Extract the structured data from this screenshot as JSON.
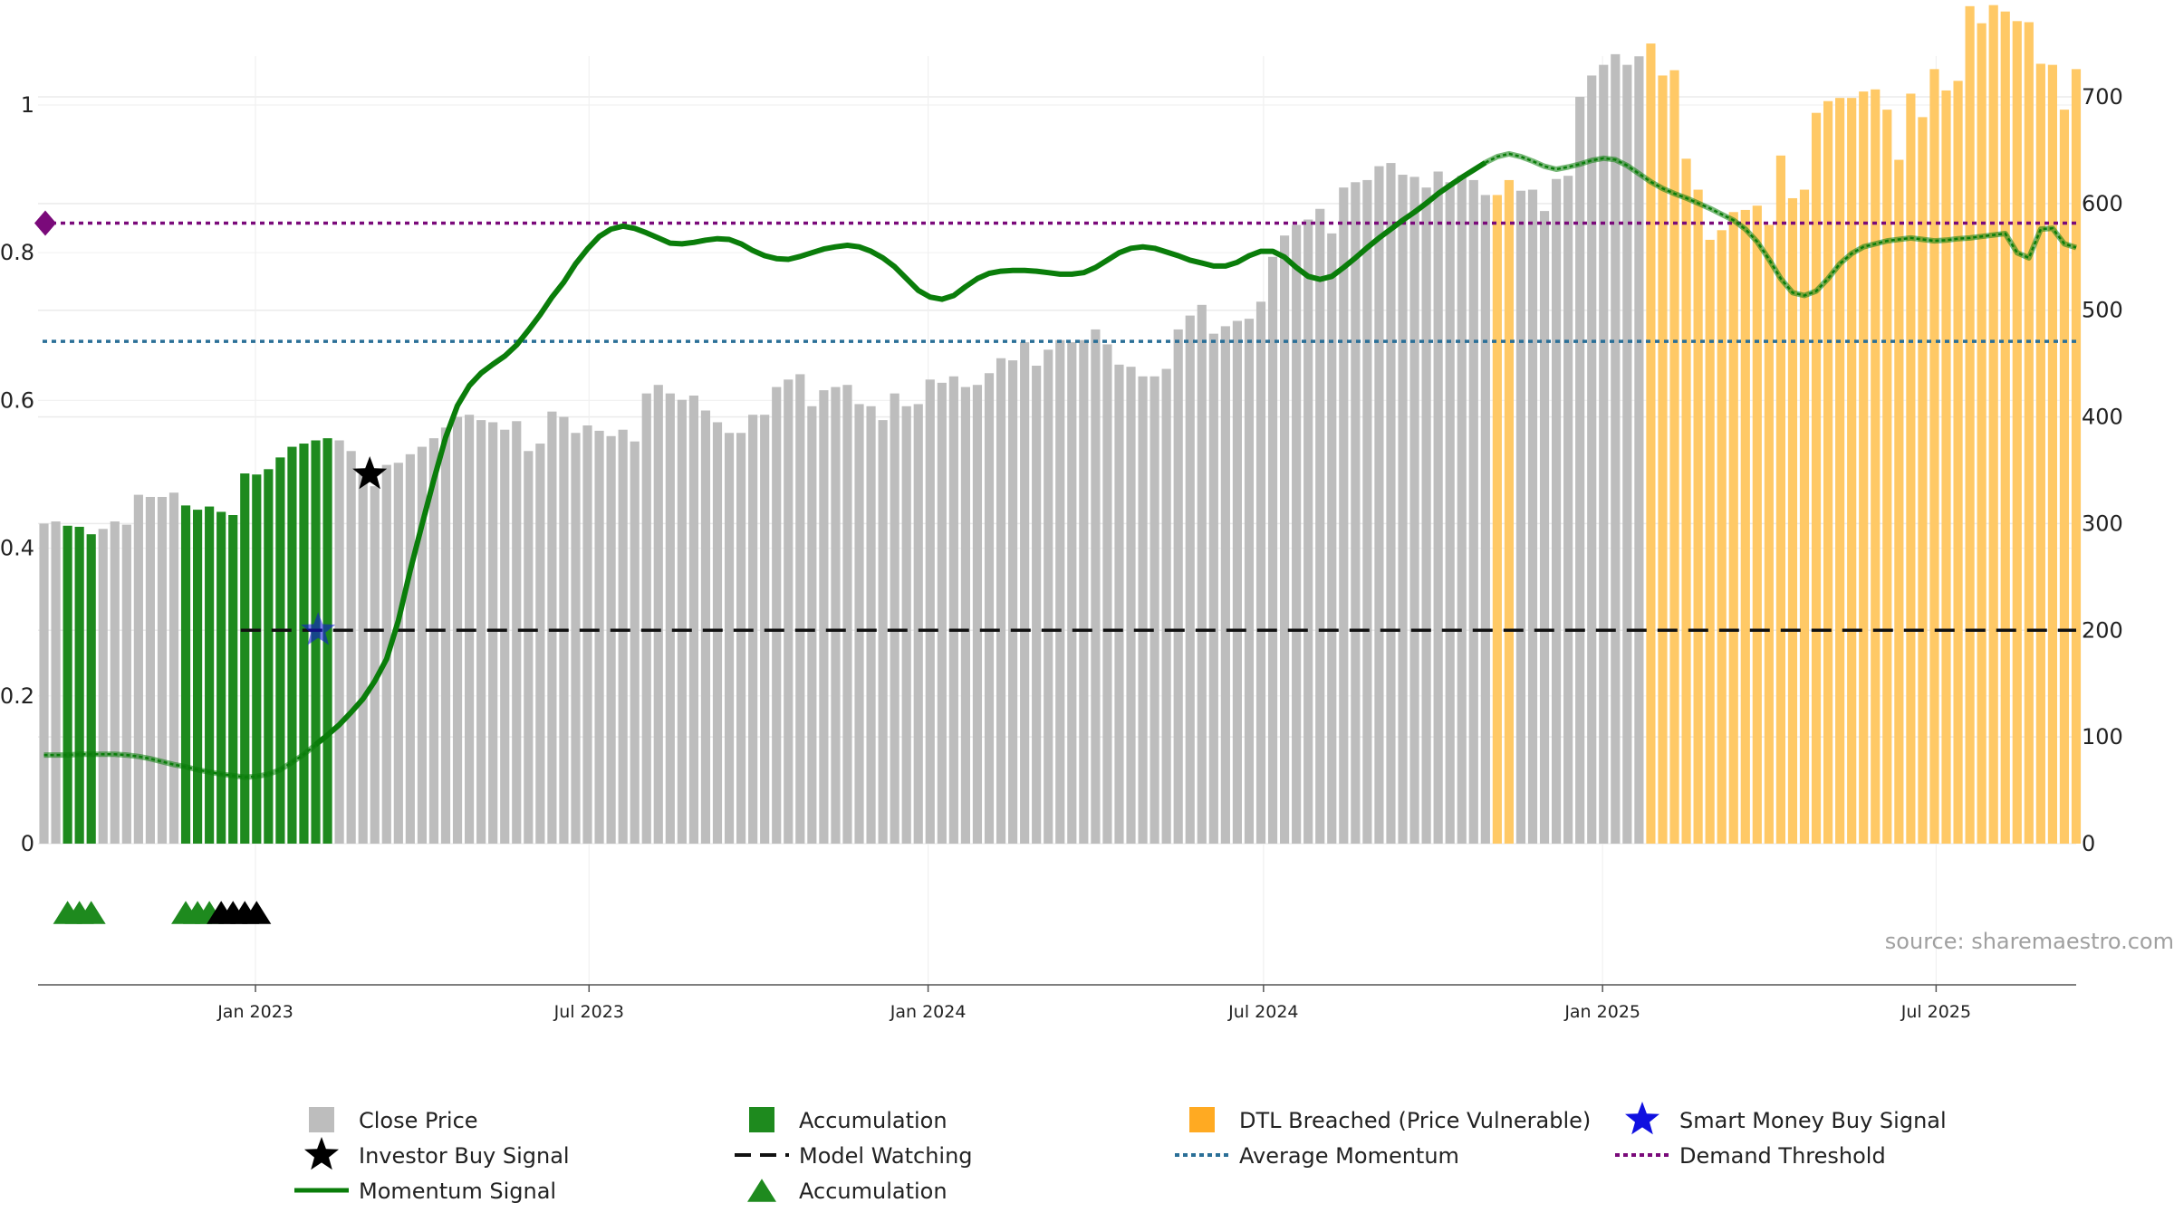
{
  "source_text": "source: sharemaestro.com",
  "colors": {
    "close_price": "#bdbdbd",
    "accumulation": "#1e8a1e",
    "dtl_breached": "#ffc966",
    "momentum": "#0a7d0a",
    "model_watching": "#111111",
    "average_momentum": "#2a6f97",
    "demand_threshold": "#7a0a7a",
    "smart_money": "#1010e0"
  },
  "chart_data": {
    "type": "bar",
    "x_axis": {
      "start": "2022-09-05",
      "end": "2025-09-15",
      "tick_labels": [
        "Jan 2023",
        "Jul 2023",
        "Jan 2024",
        "Jul 2024",
        "Jan 2025",
        "Jul 2025"
      ],
      "tick_dates": [
        "2023-01-01",
        "2023-07-01",
        "2024-01-01",
        "2024-07-01",
        "2025-01-01",
        "2025-07-01"
      ]
    },
    "y_left": {
      "range": [
        0,
        1
      ],
      "ticks": [
        "0",
        "0.2",
        "0.4",
        "0.6",
        "0.8",
        "1"
      ]
    },
    "y_right": {
      "range": [
        0,
        800
      ],
      "ticks": [
        "0",
        "100",
        "200",
        "300",
        "400",
        "500",
        "600",
        "700",
        "800"
      ]
    },
    "grid": true,
    "series": [
      {
        "name": "Close Price",
        "axis": "right",
        "interval_weeks": 1,
        "values": [
          300,
          302,
          298,
          297,
          290,
          295,
          302,
          299,
          327,
          325,
          325,
          329,
          317,
          313,
          316,
          311,
          308,
          347,
          346,
          351,
          362,
          372,
          375,
          378,
          380,
          378,
          368,
          346,
          335,
          355,
          357,
          365,
          372,
          380,
          390,
          400,
          402,
          397,
          395,
          388,
          396,
          368,
          375,
          405,
          400,
          385,
          392,
          387,
          382,
          388,
          377,
          422,
          430,
          422,
          416,
          420,
          406,
          395,
          385,
          385,
          402,
          402,
          428,
          435,
          440,
          410,
          425,
          428,
          430,
          412,
          410,
          397,
          422,
          410,
          412,
          435,
          432,
          438,
          428,
          430,
          441,
          455,
          453,
          470,
          448,
          463,
          472,
          470,
          472,
          482,
          468,
          449,
          447,
          438,
          438,
          445,
          482,
          495,
          505,
          478,
          485,
          490,
          492,
          508,
          550,
          570,
          580,
          585,
          595,
          572,
          615,
          620,
          622,
          635,
          638,
          627,
          625,
          615,
          630,
          620,
          626,
          622,
          608,
          608,
          622,
          612,
          613,
          593,
          623,
          626,
          700,
          720,
          730,
          740,
          730,
          738,
          750,
          720,
          725,
          642,
          613,
          566,
          575,
          592,
          594,
          598,
          580,
          645,
          605,
          613,
          685,
          696,
          699,
          699,
          705,
          707,
          688,
          641,
          703,
          681,
          726,
          706,
          715,
          785,
          769,
          786,
          780,
          771,
          770,
          731,
          730,
          688,
          726
        ]
      },
      {
        "name": "Momentum Signal",
        "axis": "left",
        "values": [
          0.12,
          0.12,
          0.12,
          0.121,
          0.121,
          0.121,
          0.121,
          0.12,
          0.118,
          0.115,
          0.111,
          0.107,
          0.104,
          0.1,
          0.097,
          0.094,
          0.092,
          0.09,
          0.091,
          0.094,
          0.1,
          0.11,
          0.121,
          0.134,
          0.147,
          0.161,
          0.178,
          0.196,
          0.22,
          0.25,
          0.302,
          0.37,
          0.432,
          0.493,
          0.55,
          0.593,
          0.62,
          0.637,
          0.649,
          0.66,
          0.675,
          0.695,
          0.716,
          0.74,
          0.76,
          0.785,
          0.805,
          0.822,
          0.832,
          0.836,
          0.833,
          0.827,
          0.82,
          0.813,
          0.812,
          0.814,
          0.817,
          0.819,
          0.818,
          0.812,
          0.803,
          0.796,
          0.792,
          0.791,
          0.795,
          0.8,
          0.805,
          0.808,
          0.81,
          0.808,
          0.802,
          0.793,
          0.781,
          0.765,
          0.749,
          0.74,
          0.737,
          0.742,
          0.754,
          0.765,
          0.772,
          0.775,
          0.776,
          0.776,
          0.775,
          0.773,
          0.771,
          0.771,
          0.773,
          0.78,
          0.79,
          0.8,
          0.806,
          0.808,
          0.806,
          0.801,
          0.796,
          0.79,
          0.786,
          0.782,
          0.782,
          0.787,
          0.796,
          0.802,
          0.802,
          0.794,
          0.78,
          0.768,
          0.764,
          0.768,
          0.78,
          0.793,
          0.807,
          0.82,
          0.832,
          0.844,
          0.855,
          0.867,
          0.88,
          0.891,
          0.902,
          0.912,
          0.922,
          0.93,
          0.934,
          0.93,
          0.924,
          0.917,
          0.913,
          0.916,
          0.92,
          0.925,
          0.928,
          0.926,
          0.918,
          0.907,
          0.896,
          0.887,
          0.88,
          0.874,
          0.867,
          0.86,
          0.852,
          0.844,
          0.832,
          0.815,
          0.791,
          0.765,
          0.746,
          0.742,
          0.748,
          0.765,
          0.785,
          0.799,
          0.808,
          0.812,
          0.816,
          0.818,
          0.82,
          0.818,
          0.816,
          0.817,
          0.819,
          0.82,
          0.822,
          0.824,
          0.826,
          0.8,
          0.793,
          0.832,
          0.833,
          0.812,
          0.807
        ]
      }
    ],
    "accumulation_weeks": [
      2,
      3,
      4,
      12,
      13,
      14,
      15,
      16,
      17,
      18,
      19,
      20,
      21,
      22,
      23,
      24
    ],
    "accumulation_markers": [
      2,
      3,
      4,
      12,
      13,
      14
    ],
    "investor_buy_markers": [
      15,
      16,
      17,
      18
    ],
    "dtl_breached_weeks": [
      123,
      124,
      136,
      137,
      138,
      139,
      140,
      141,
      142,
      143,
      144,
      145,
      146,
      147,
      148,
      149,
      150,
      151,
      152,
      153,
      154,
      155,
      156,
      157,
      158,
      159,
      160,
      161,
      162,
      163,
      164,
      165,
      166,
      167,
      168,
      169,
      170,
      171,
      172
    ],
    "dashed_momentum_from_week": 0,
    "dashed_momentum_to_week": 23,
    "dashed_momentum_after_week": 122,
    "smart_money_buy_signal": {
      "date": "2023-02-04",
      "value": 200
    },
    "investor_buy_signal": {
      "date": "2023-03-04",
      "value": 0.5
    },
    "model_watching": {
      "value": 200,
      "start": "2022-12-24"
    },
    "average_momentum": 0.68,
    "demand_threshold": 0.84,
    "legend": {
      "placement": "bottom",
      "items": [
        {
          "label": "Close Price",
          "icon": "gray-square"
        },
        {
          "label": "Accumulation",
          "icon": "green-square"
        },
        {
          "label": "DTL Breached (Price Vulnerable)",
          "icon": "orange-square"
        },
        {
          "label": "Smart Money Buy Signal",
          "icon": "blue-star"
        },
        {
          "label": "Investor Buy Signal",
          "icon": "black-star"
        },
        {
          "label": "Model Watching",
          "icon": "black-dashed-line"
        },
        {
          "label": "Average Momentum",
          "icon": "blue-dotted-line"
        },
        {
          "label": "Demand Threshold",
          "icon": "purple-dotted-line"
        },
        {
          "label": "Momentum Signal",
          "icon": "green-line"
        },
        {
          "label": "Accumulation",
          "icon": "green-triangle"
        }
      ]
    }
  }
}
